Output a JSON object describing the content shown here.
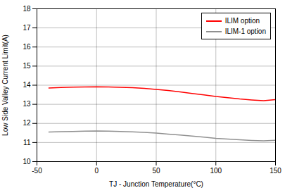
{
  "chart_data": {
    "type": "line",
    "xlabel": "TJ - Junction Temperature(°C)",
    "ylabel": "Low Side Valley Current Limit(A)",
    "x": [
      -40,
      -30,
      -20,
      -10,
      0,
      10,
      20,
      30,
      40,
      50,
      60,
      70,
      80,
      90,
      100,
      110,
      120,
      130,
      140,
      150
    ],
    "series": [
      {
        "name": "ILIM option",
        "color": "#ff0000",
        "values": [
          13.85,
          13.88,
          13.9,
          13.91,
          13.92,
          13.91,
          13.89,
          13.87,
          13.83,
          13.78,
          13.72,
          13.65,
          13.57,
          13.49,
          13.41,
          13.35,
          13.28,
          13.23,
          13.19,
          13.25
        ]
      },
      {
        "name": "ILIM-1 option",
        "color": "#909090",
        "values": [
          11.55,
          11.57,
          11.58,
          11.59,
          11.6,
          11.59,
          11.58,
          11.56,
          11.53,
          11.49,
          11.44,
          11.39,
          11.34,
          11.28,
          11.22,
          11.18,
          11.14,
          11.11,
          11.09,
          11.12
        ]
      }
    ],
    "xlim": [
      -50,
      150
    ],
    "ylim": [
      10,
      18
    ],
    "xticks": [
      -50,
      0,
      50,
      100,
      150
    ],
    "yticks": [
      10,
      11,
      12,
      13,
      14,
      15,
      16,
      17,
      18
    ],
    "grid": true,
    "legend": "upper right"
  }
}
